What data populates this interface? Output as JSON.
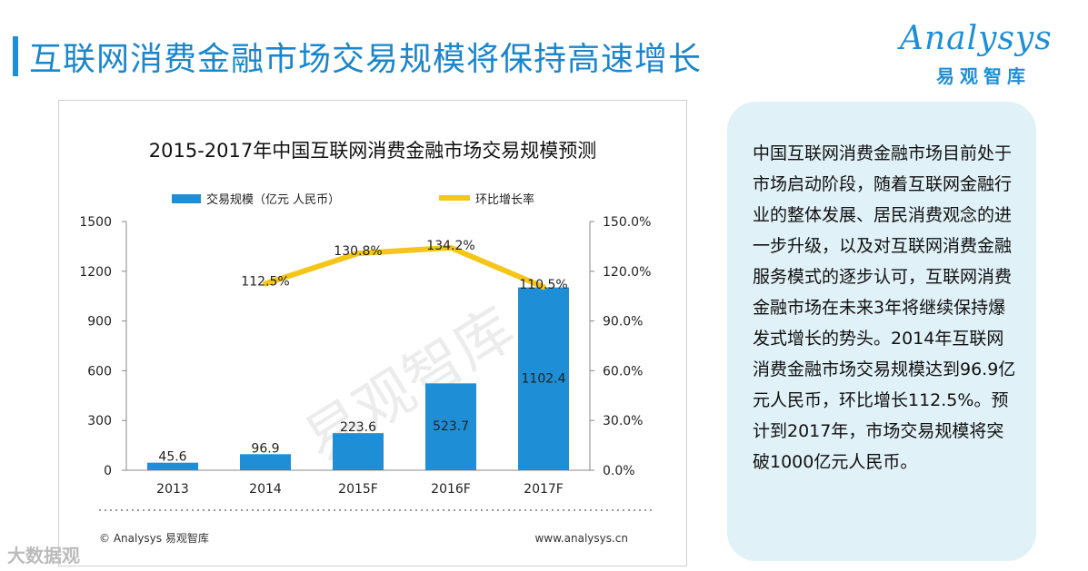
{
  "page": {
    "title": "互联网消费金融市场交易规模将保持高速增长"
  },
  "logo": {
    "word": "Analysys",
    "cn": "易观智库"
  },
  "info": {
    "text": "中国互联网消费金融市场目前处于市场启动阶段，随着互联网金融行业的整体发展、居民消费观念的进一步升级，以及对互联网消费金融服务模式的逐步认可，互联网消费金融市场在未来3年将继续保持爆发式增长的势头。2014年互联网消费金融市场交易规模达到96.9亿元人民币，环比增长112.5%。预计到2017年，市场交易规模将突破1000亿元人民币。"
  },
  "footer": {
    "copyright": "© Analysys 易观智库",
    "url": "www.analysys.cn",
    "watermark": "易观智库",
    "brand": "大数据观"
  },
  "chart_data": {
    "type": "bar",
    "title": "2015-2017年中国互联网消费金融市场交易规模预测",
    "categories": [
      "2013",
      "2014",
      "2015F",
      "2016F",
      "2017F"
    ],
    "series": [
      {
        "name": "交易规模（亿元 人民币）",
        "type": "bar",
        "axis": "left",
        "values": [
          45.6,
          96.9,
          223.6,
          523.7,
          1102.4
        ],
        "labels": [
          "45.6",
          "96.9",
          "223.6",
          "523.7",
          "1102.4"
        ],
        "color": "#1e8fd6"
      },
      {
        "name": "环比增长率",
        "type": "line",
        "axis": "right",
        "values": [
          null,
          112.5,
          130.8,
          134.2,
          110.5
        ],
        "labels": [
          "",
          "112.5%",
          "130.8%",
          "134.2%",
          "110.5%"
        ],
        "color": "#f5c518"
      }
    ],
    "ylim": [
      0,
      1500
    ],
    "y_ticks": [
      "0",
      "300",
      "600",
      "900",
      "1200",
      "1500"
    ],
    "y2lim": [
      0,
      150
    ],
    "y2_ticks": [
      "0.0%",
      "30.0%",
      "60.0%",
      "90.0%",
      "120.0%",
      "150.0%"
    ],
    "legend_position": "top",
    "grid": false
  }
}
